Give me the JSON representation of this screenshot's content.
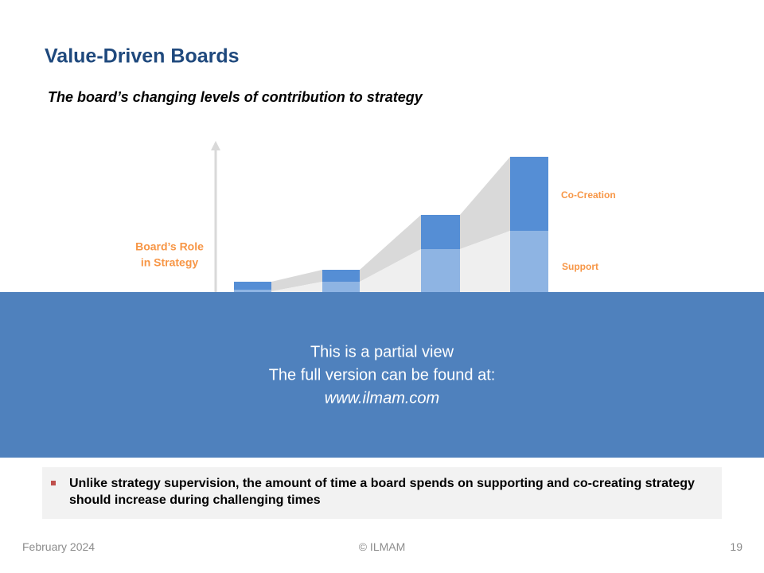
{
  "header": {
    "title": "Value-Driven Boards",
    "subtitle": "The board’s changing levels of contribution to strategy"
  },
  "diagram": {
    "axis_label": [
      "Board’s Role",
      "in Strategy"
    ],
    "layers": [
      "Co-Creation",
      "Support"
    ]
  },
  "overlay": {
    "lines": [
      "This is a partial view",
      "The full version can be found at:",
      "www.ilmam.com"
    ]
  },
  "takeaway": "Unlike strategy supervision, the amount of time a board spends on supporting and co-creating strategy should increase during challenging times",
  "footer": {
    "date": "February 2024",
    "copyright": "© ILMAM",
    "page": "19"
  }
}
